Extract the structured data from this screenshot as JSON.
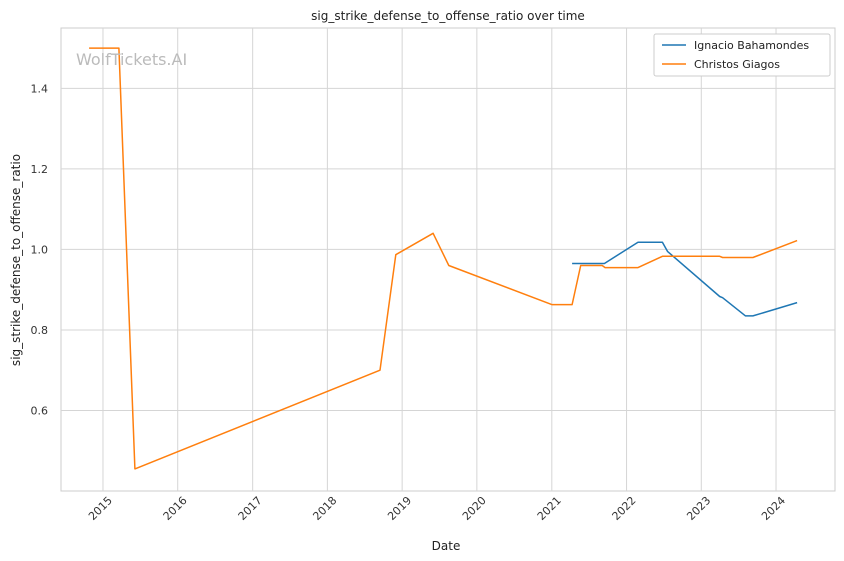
{
  "chart_data": {
    "type": "line",
    "title": "sig_strike_defense_to_offense_ratio over time",
    "xlabel": "Date",
    "ylabel": "sig_strike_defense_to_offense_ratio",
    "watermark": "WolfTickets.AI",
    "x_ticks": [
      "2015",
      "2016",
      "2017",
      "2018",
      "2019",
      "2020",
      "2021",
      "2022",
      "2023",
      "2024"
    ],
    "y_ticks": [
      0.6,
      0.8,
      1.0,
      1.2,
      1.4
    ],
    "xlim": [
      "2014-06-10",
      "2024-10-15"
    ],
    "ylim": [
      0.4,
      1.55
    ],
    "grid": true,
    "legend_position": "top-right",
    "series": [
      {
        "name": "Ignacio Bahamondes",
        "color": "#1f77b4",
        "points": [
          [
            "2021-04-10",
            0.965
          ],
          [
            "2021-09-15",
            0.965
          ],
          [
            "2022-02-26",
            1.018
          ],
          [
            "2022-06-25",
            1.018
          ],
          [
            "2022-07-20",
            0.995
          ],
          [
            "2023-04-01",
            0.883
          ],
          [
            "2023-04-15",
            0.88
          ],
          [
            "2023-08-05",
            0.835
          ],
          [
            "2023-09-10",
            0.835
          ],
          [
            "2024-04-13",
            0.868
          ]
        ]
      },
      {
        "name": "Christos Giagos",
        "color": "#ff7f0e",
        "points": [
          [
            "2014-10-25",
            1.5
          ],
          [
            "2015-03-20",
            1.5
          ],
          [
            "2015-06-06",
            0.455
          ],
          [
            "2018-09-15",
            0.7
          ],
          [
            "2018-12-01",
            0.987
          ],
          [
            "2019-06-01",
            1.04
          ],
          [
            "2019-08-17",
            0.96
          ],
          [
            "2021-01-01",
            0.863
          ],
          [
            "2021-04-10",
            0.863
          ],
          [
            "2021-05-22",
            0.96
          ],
          [
            "2021-09-04",
            0.96
          ],
          [
            "2021-09-18",
            0.955
          ],
          [
            "2022-02-26",
            0.955
          ],
          [
            "2022-06-25",
            0.983
          ],
          [
            "2023-04-01",
            0.983
          ],
          [
            "2023-04-15",
            0.98
          ],
          [
            "2023-09-10",
            0.98
          ],
          [
            "2024-04-13",
            1.022
          ]
        ]
      }
    ]
  }
}
